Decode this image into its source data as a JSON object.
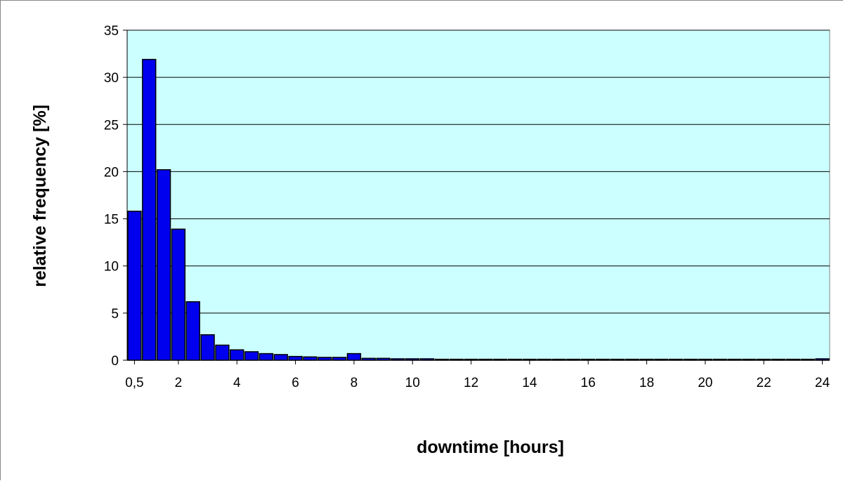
{
  "colors": {
    "plot_bg": "#ccffff",
    "bar_fill": "#0000ee",
    "bar_stroke": "#000000",
    "grid": "#000000"
  },
  "chart_data": {
    "type": "bar",
    "title": "",
    "xlabel": "downtime  [hours]",
    "ylabel": "relative frequency [%]",
    "ylim": [
      0,
      35
    ],
    "yticks": [
      "0",
      "5",
      "10",
      "15",
      "20",
      "25",
      "30",
      "35"
    ],
    "xlim": [
      0.25,
      24.25
    ],
    "xtick_labels": [
      "0,5",
      "2",
      "4",
      "6",
      "8",
      "10",
      "12",
      "14",
      "16",
      "18",
      "20",
      "22",
      "24"
    ],
    "bin_width_hours": 0.5,
    "grid": true,
    "x": [
      0.5,
      1,
      1.5,
      2,
      2.5,
      3,
      3.5,
      4,
      4.5,
      5,
      5.5,
      6,
      6.5,
      7,
      7.5,
      8,
      8.5,
      9,
      9.5,
      10,
      10.5,
      11,
      11.5,
      12,
      12.5,
      13,
      13.5,
      14,
      14.5,
      15,
      15.5,
      16,
      16.5,
      17,
      17.5,
      18,
      18.5,
      19,
      19.5,
      20,
      20.5,
      21,
      21.5,
      22,
      22.5,
      23,
      23.5,
      24
    ],
    "values": [
      15.8,
      31.9,
      20.2,
      13.9,
      6.2,
      2.7,
      1.6,
      1.1,
      0.9,
      0.7,
      0.6,
      0.4,
      0.35,
      0.3,
      0.3,
      0.7,
      0.2,
      0.2,
      0.15,
      0.15,
      0.15,
      0.1,
      0.1,
      0.1,
      0.1,
      0.1,
      0.1,
      0.1,
      0.1,
      0.1,
      0.1,
      0.1,
      0.1,
      0.1,
      0.1,
      0.1,
      0.1,
      0.1,
      0.1,
      0.1,
      0.1,
      0.1,
      0.1,
      0.1,
      0.1,
      0.1,
      0.1,
      0.15
    ]
  }
}
